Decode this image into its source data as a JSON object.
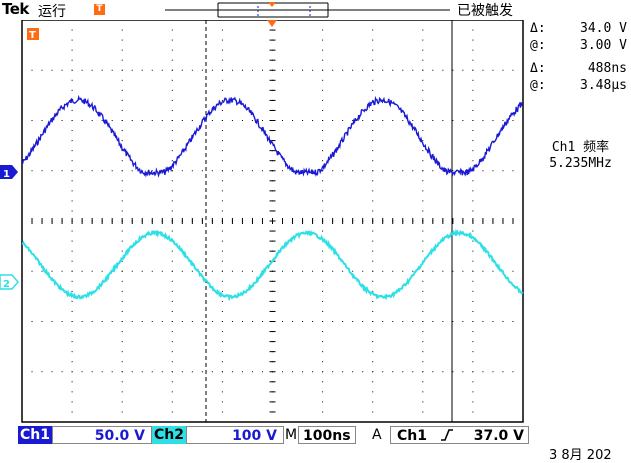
{
  "header": {
    "brand": "Tek",
    "run_state": "运行",
    "trigger_position_marker": "T",
    "acquisition_status": "已被触发"
  },
  "waveform": {
    "trigger_level_marker": "T",
    "ch1_marker": "1",
    "ch2_marker": "2"
  },
  "cursor_readouts": {
    "voltage_delta_label": "Δ:",
    "voltage_delta": "34.0 V",
    "voltage_at_label": "@:",
    "voltage_at": "3.00 V",
    "time_delta_label": "Δ:",
    "time_delta": "488ns",
    "time_at_label": "@:",
    "time_at": "3.48μs"
  },
  "measurement": {
    "label": "Ch1 频率",
    "value": "5.235MHz"
  },
  "status_bar": {
    "ch1_label": "Ch1",
    "ch1_scale": "50.0 V",
    "ch2_label": "Ch2",
    "ch2_scale": "100 V",
    "timebase_label": "M",
    "timebase": "100ns",
    "trigger_mode_label": "A",
    "trigger_source": "Ch1",
    "trigger_slope_icon": "rising-edge-icon",
    "trigger_level": "37.0 V"
  },
  "footer": {
    "datetime": "3 8月  202"
  },
  "colors": {
    "ch1": "#1a1ad2",
    "ch2": "#2ee0e6",
    "trigger": "#ff6a13",
    "grid": "#000000"
  }
}
